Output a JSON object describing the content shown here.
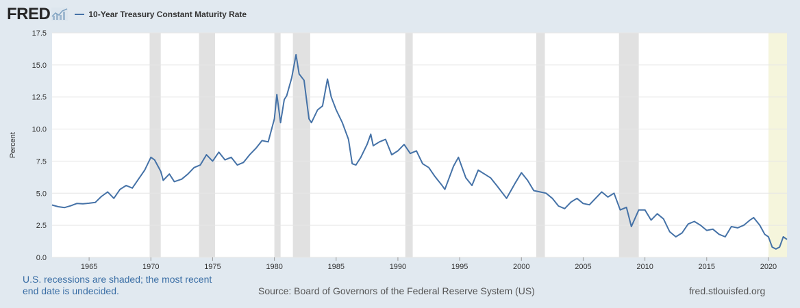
{
  "header": {
    "logo_text": "FRED",
    "logo_icon": "line-chart-icon"
  },
  "footer": {
    "note": "U.S. recessions are shaded; the most recent end date is undecided.",
    "source": "Source: Board of Governors of the Federal Reserve System (US)",
    "site": "fred.stlouisfed.org"
  },
  "colors": {
    "series": "#4572a7",
    "recession": "#e1e1e1",
    "current_recession": "#f5f5dc",
    "background": "#e1e9f0",
    "plot_bg": "#ffffff"
  },
  "chart_data": {
    "type": "line",
    "title": "",
    "xlabel": "",
    "ylabel": "Percent",
    "xlim": [
      1962.0,
      2021.5
    ],
    "ylim": [
      0,
      17.5
    ],
    "yticks": [
      "0.0",
      "2.5",
      "5.0",
      "7.5",
      "10.0",
      "12.5",
      "15.0",
      "17.5"
    ],
    "xticks": [
      "1965",
      "1970",
      "1975",
      "1980",
      "1985",
      "1990",
      "1995",
      "2000",
      "2005",
      "2010",
      "2015",
      "2020"
    ],
    "grid": true,
    "legend_position": "top-left",
    "recessions": [
      [
        1969.9,
        1970.8
      ],
      [
        1973.9,
        1975.2
      ],
      [
        1980.0,
        1980.5
      ],
      [
        1981.5,
        1982.9
      ],
      [
        1990.6,
        1991.2
      ],
      [
        2001.2,
        2001.9
      ],
      [
        2007.9,
        2009.5
      ]
    ],
    "current_recession": [
      2020.0,
      2021.5
    ],
    "series": [
      {
        "name": "10-Year Treasury Constant Maturity Rate",
        "x": [
          1962.0,
          1962.5,
          1963.0,
          1963.5,
          1964.0,
          1964.5,
          1965.0,
          1965.5,
          1966.0,
          1966.5,
          1967.0,
          1967.5,
          1968.0,
          1968.5,
          1969.0,
          1969.5,
          1970.0,
          1970.3,
          1970.8,
          1971.0,
          1971.5,
          1971.9,
          1972.5,
          1973.0,
          1973.5,
          1974.0,
          1974.5,
          1975.0,
          1975.5,
          1976.0,
          1976.5,
          1977.0,
          1977.5,
          1978.0,
          1978.5,
          1979.0,
          1979.5,
          1980.0,
          1980.2,
          1980.5,
          1980.8,
          1981.0,
          1981.4,
          1981.75,
          1982.0,
          1982.4,
          1982.8,
          1983.0,
          1983.5,
          1983.9,
          1984.3,
          1984.6,
          1985.0,
          1985.5,
          1986.0,
          1986.3,
          1986.6,
          1987.0,
          1987.5,
          1987.8,
          1988.0,
          1988.5,
          1989.0,
          1989.5,
          1990.0,
          1990.5,
          1991.0,
          1991.5,
          1992.0,
          1992.5,
          1993.0,
          1993.5,
          1993.8,
          1994.5,
          1994.9,
          1995.5,
          1996.0,
          1996.5,
          1997.0,
          1997.5,
          1998.0,
          1998.8,
          1999.5,
          2000.0,
          2000.5,
          2001.0,
          2001.5,
          2002.0,
          2002.5,
          2003.0,
          2003.5,
          2004.0,
          2004.5,
          2005.0,
          2005.5,
          2006.0,
          2006.5,
          2007.0,
          2007.5,
          2008.0,
          2008.5,
          2008.9,
          2009.5,
          2010.0,
          2010.5,
          2011.0,
          2011.5,
          2012.0,
          2012.5,
          2013.0,
          2013.5,
          2014.0,
          2014.5,
          2015.0,
          2015.5,
          2016.0,
          2016.5,
          2017.0,
          2017.5,
          2018.0,
          2018.5,
          2018.8,
          2019.3,
          2019.7,
          2020.0,
          2020.3,
          2020.6,
          2020.9,
          2021.2,
          2021.5
        ],
        "values": [
          4.08,
          3.95,
          3.88,
          4.02,
          4.2,
          4.18,
          4.22,
          4.28,
          4.75,
          5.1,
          4.6,
          5.3,
          5.6,
          5.4,
          6.1,
          6.8,
          7.8,
          7.6,
          6.7,
          6.0,
          6.5,
          5.9,
          6.1,
          6.5,
          7.0,
          7.2,
          8.0,
          7.5,
          8.2,
          7.6,
          7.8,
          7.2,
          7.4,
          8.0,
          8.5,
          9.1,
          9.0,
          10.8,
          12.7,
          10.5,
          12.3,
          12.6,
          14.0,
          15.8,
          14.3,
          13.8,
          10.8,
          10.5,
          11.5,
          11.8,
          13.9,
          12.5,
          11.5,
          10.5,
          9.2,
          7.3,
          7.2,
          7.8,
          8.8,
          9.6,
          8.7,
          9.0,
          9.2,
          8.0,
          8.3,
          8.8,
          8.1,
          8.3,
          7.3,
          7.0,
          6.3,
          5.7,
          5.3,
          7.1,
          7.8,
          6.2,
          5.6,
          6.8,
          6.5,
          6.2,
          5.6,
          4.6,
          5.8,
          6.6,
          6.0,
          5.2,
          5.1,
          5.0,
          4.6,
          4.0,
          3.8,
          4.3,
          4.6,
          4.2,
          4.1,
          4.6,
          5.1,
          4.7,
          5.0,
          3.7,
          3.9,
          2.4,
          3.7,
          3.7,
          2.9,
          3.4,
          3.0,
          2.0,
          1.6,
          1.9,
          2.6,
          2.8,
          2.5,
          2.1,
          2.2,
          1.8,
          1.6,
          2.4,
          2.3,
          2.5,
          2.9,
          3.1,
          2.5,
          1.8,
          1.6,
          0.8,
          0.65,
          0.8,
          1.6,
          1.4
        ]
      }
    ]
  }
}
